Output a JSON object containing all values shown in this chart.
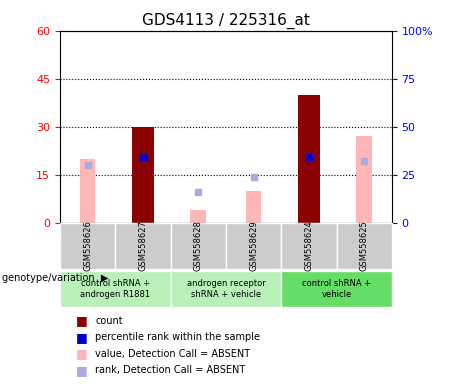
{
  "title": "GDS4113 / 225316_at",
  "samples": [
    "GSM558626",
    "GSM558627",
    "GSM558628",
    "GSM558629",
    "GSM558624",
    "GSM558625"
  ],
  "count_values": [
    0,
    30,
    0,
    0,
    40,
    0
  ],
  "percentile_rank_present": {
    "GSM558627": 34,
    "GSM558624": 34
  },
  "value_absent": {
    "GSM558626": 20,
    "GSM558628": 4,
    "GSM558629": 10,
    "GSM558625": 27
  },
  "rank_absent": {
    "GSM558626": 30,
    "GSM558628": 16,
    "GSM558629": 24,
    "GSM558625": 32
  },
  "genotype_groups": [
    {
      "label": "control shRNA +\nandrogen R1881",
      "samples": [
        "GSM558626",
        "GSM558627"
      ],
      "color": "#b8f0b8"
    },
    {
      "label": "androgen receptor\nshRNA + vehicle",
      "samples": [
        "GSM558628",
        "GSM558629"
      ],
      "color": "#b8f0b8"
    },
    {
      "label": "control shRNA +\nvehicle",
      "samples": [
        "GSM558624",
        "GSM558625"
      ],
      "color": "#66dd66"
    }
  ],
  "ylim_left": [
    0,
    60
  ],
  "ylim_right": [
    0,
    100
  ],
  "yticks_left": [
    0,
    15,
    30,
    45,
    60
  ],
  "yticks_right": [
    0,
    25,
    50,
    75,
    100
  ],
  "ytick_labels_left": [
    "0",
    "15",
    "30",
    "45",
    "60"
  ],
  "ytick_labels_right": [
    "0",
    "25",
    "50",
    "75",
    "100%"
  ],
  "bar_color_count": "#8B0000",
  "bar_color_absent": "#ffb6b6",
  "dot_color_present": "#0000cc",
  "dot_color_absent": "#aaaadd",
  "title_fontsize": 11,
  "tick_fontsize": 8,
  "genotype_label": "genotype/variation"
}
